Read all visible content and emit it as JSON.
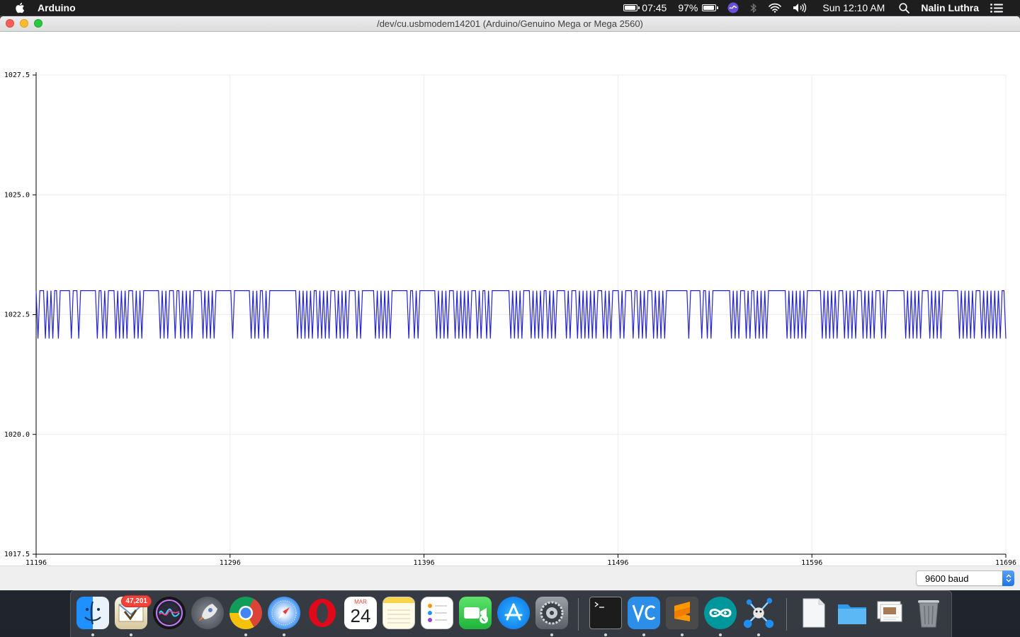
{
  "menubar": {
    "app_name": "Arduino",
    "battery_clock": "07:45",
    "battery_percent": "97%",
    "battery_level": 0.97,
    "time": "Sun 12:10 AM",
    "user": "Nalin  Luthra"
  },
  "window": {
    "title": "/dev/cu.usbmodem14201 (Arduino/Genuino Mega or Mega 2560)",
    "baud_select": "9600 baud"
  },
  "chart_data": {
    "type": "line",
    "title": "",
    "xlabel": "",
    "ylabel": "",
    "xlim": [
      11196,
      11696
    ],
    "ylim": [
      1017.5,
      1027.5
    ],
    "x_ticks": [
      "11196",
      "11296",
      "11396",
      "11496",
      "11596",
      "11696"
    ],
    "y_ticks": [
      "1027.5",
      "1025.0",
      "1022.5",
      "1020.0",
      "1017.5"
    ],
    "grid": true,
    "series": [
      {
        "color": "#2323d2",
        "x_start": 11196,
        "values": [
          1023,
          1022,
          1023,
          1023,
          1023,
          1022,
          1023,
          1022,
          1023,
          1022,
          1023,
          1023,
          1022,
          1023,
          1023,
          1023,
          1023,
          1023,
          1023,
          1022,
          1023,
          1023,
          1023,
          1022,
          1023,
          1023,
          1023,
          1023,
          1023,
          1023,
          1023,
          1023,
          1023,
          1022,
          1023,
          1023,
          1022,
          1023,
          1022,
          1023,
          1023,
          1023,
          1023,
          1022,
          1023,
          1022,
          1023,
          1022,
          1023,
          1022,
          1023,
          1023,
          1023,
          1022,
          1023,
          1022,
          1023,
          1022,
          1023,
          1023,
          1023,
          1023,
          1023,
          1023,
          1023,
          1023,
          1023,
          1022,
          1023,
          1022,
          1023,
          1022,
          1023,
          1023,
          1023,
          1022,
          1023,
          1023,
          1022,
          1023,
          1022,
          1023,
          1022,
          1023,
          1022,
          1023,
          1023,
          1023,
          1023,
          1023,
          1022,
          1023,
          1022,
          1023,
          1022,
          1023,
          1022,
          1023,
          1023,
          1023,
          1023,
          1023,
          1023,
          1023,
          1023,
          1023,
          1022,
          1023,
          1023,
          1023,
          1023,
          1023,
          1023,
          1023,
          1023,
          1023,
          1022,
          1023,
          1022,
          1023,
          1022,
          1023,
          1023,
          1022,
          1023,
          1022,
          1023,
          1023,
          1023,
          1023,
          1023,
          1023,
          1023,
          1023,
          1023,
          1023,
          1023,
          1023,
          1023,
          1023,
          1023,
          1022,
          1023,
          1022,
          1023,
          1022,
          1023,
          1022,
          1023,
          1022,
          1023,
          1023,
          1022,
          1023,
          1022,
          1023,
          1022,
          1023,
          1022,
          1023,
          1023,
          1023,
          1022,
          1023,
          1022,
          1023,
          1022,
          1023,
          1022,
          1023,
          1023,
          1023,
          1023,
          1022,
          1023,
          1022,
          1023,
          1023,
          1023,
          1023,
          1023,
          1023,
          1023,
          1022,
          1023,
          1022,
          1023,
          1022,
          1023,
          1022,
          1023,
          1022,
          1023,
          1023,
          1023,
          1023,
          1023,
          1023,
          1023,
          1023,
          1023,
          1022,
          1023,
          1023,
          1022,
          1023,
          1022,
          1023,
          1023,
          1023,
          1023,
          1023,
          1023,
          1023,
          1023,
          1023,
          1022,
          1023,
          1022,
          1023,
          1022,
          1023,
          1022,
          1023,
          1023,
          1023,
          1022,
          1023,
          1022,
          1023,
          1022,
          1023,
          1022,
          1023,
          1022,
          1023,
          1023,
          1023,
          1022,
          1023,
          1022,
          1023,
          1023,
          1022,
          1023,
          1022,
          1023,
          1023,
          1023,
          1023,
          1023,
          1023,
          1023,
          1023,
          1023,
          1023,
          1022,
          1023,
          1022,
          1023,
          1022,
          1023,
          1022,
          1023,
          1023,
          1023,
          1023,
          1022,
          1023,
          1022,
          1023,
          1022,
          1023,
          1022,
          1023,
          1023,
          1022,
          1023,
          1022,
          1023,
          1022,
          1023,
          1023,
          1023,
          1023,
          1023,
          1022,
          1023,
          1022,
          1023,
          1023,
          1023,
          1022,
          1023,
          1022,
          1023,
          1022,
          1023,
          1022,
          1023,
          1022,
          1023,
          1022,
          1023,
          1023,
          1023,
          1022,
          1023,
          1022,
          1023,
          1022,
          1023,
          1023,
          1023,
          1023,
          1022,
          1023,
          1022,
          1023,
          1023,
          1023,
          1023,
          1022,
          1023,
          1023,
          1022,
          1023,
          1022,
          1023,
          1022,
          1023,
          1023,
          1023,
          1022,
          1023,
          1022,
          1023,
          1022,
          1023,
          1022,
          1023,
          1023,
          1023,
          1023,
          1023,
          1023,
          1023,
          1023,
          1023,
          1023,
          1023,
          1023,
          1022,
          1023,
          1023,
          1023,
          1023,
          1023,
          1023,
          1022,
          1023,
          1023,
          1022,
          1023,
          1022,
          1023,
          1023,
          1023,
          1023,
          1023,
          1023,
          1023,
          1023,
          1023,
          1023,
          1022,
          1023,
          1022,
          1023,
          1022,
          1023,
          1023,
          1023,
          1022,
          1023,
          1022,
          1023,
          1023,
          1022,
          1023,
          1022,
          1023,
          1022,
          1023,
          1022,
          1023,
          1023,
          1023,
          1023,
          1023,
          1023,
          1023,
          1023,
          1023,
          1023,
          1022,
          1023,
          1022,
          1023,
          1022,
          1023,
          1022,
          1023,
          1022,
          1023,
          1022,
          1023,
          1023,
          1023,
          1023,
          1023,
          1023,
          1023,
          1023,
          1022,
          1023,
          1022,
          1023,
          1022,
          1023,
          1022,
          1023,
          1022,
          1023,
          1023,
          1023,
          1022,
          1023,
          1022,
          1023,
          1022,
          1023,
          1022,
          1023,
          1023,
          1023,
          1022,
          1023,
          1022,
          1023,
          1022,
          1023,
          1022,
          1023,
          1023,
          1023,
          1022,
          1023,
          1022,
          1023,
          1023,
          1023,
          1023,
          1023,
          1023,
          1023,
          1023,
          1023,
          1023,
          1022,
          1023,
          1022,
          1023,
          1022,
          1023,
          1022,
          1023,
          1022,
          1023,
          1023,
          1023,
          1023,
          1022,
          1023,
          1022,
          1023,
          1022,
          1023,
          1022,
          1023,
          1023,
          1023,
          1023,
          1023,
          1023,
          1023,
          1023,
          1023,
          1022,
          1023,
          1022,
          1023,
          1022,
          1023,
          1022,
          1023,
          1022,
          1023,
          1023,
          1023,
          1022,
          1023,
          1022,
          1023,
          1022,
          1023,
          1022,
          1023,
          1022,
          1023,
          1022,
          1023,
          1023,
          1022
        ]
      }
    ]
  },
  "dock": {
    "mail_badge": "47,201",
    "calendar_month": "MAR",
    "calendar_day": "24",
    "icons": [
      "finder-icon",
      "mail-icon",
      "siri-icon",
      "launchpad-icon",
      "chrome-icon",
      "safari-icon",
      "opera-icon",
      "calendar-icon",
      "notes-icon",
      "reminders-icon",
      "facetime-icon",
      "app-store-icon",
      "system-preferences-icon",
      "terminal-icon",
      "vscode-icon",
      "sublime-text-icon",
      "arduino-icon",
      "network-app-icon",
      "document-icon",
      "folder-icon",
      "preview-icon",
      "trash-icon"
    ]
  }
}
